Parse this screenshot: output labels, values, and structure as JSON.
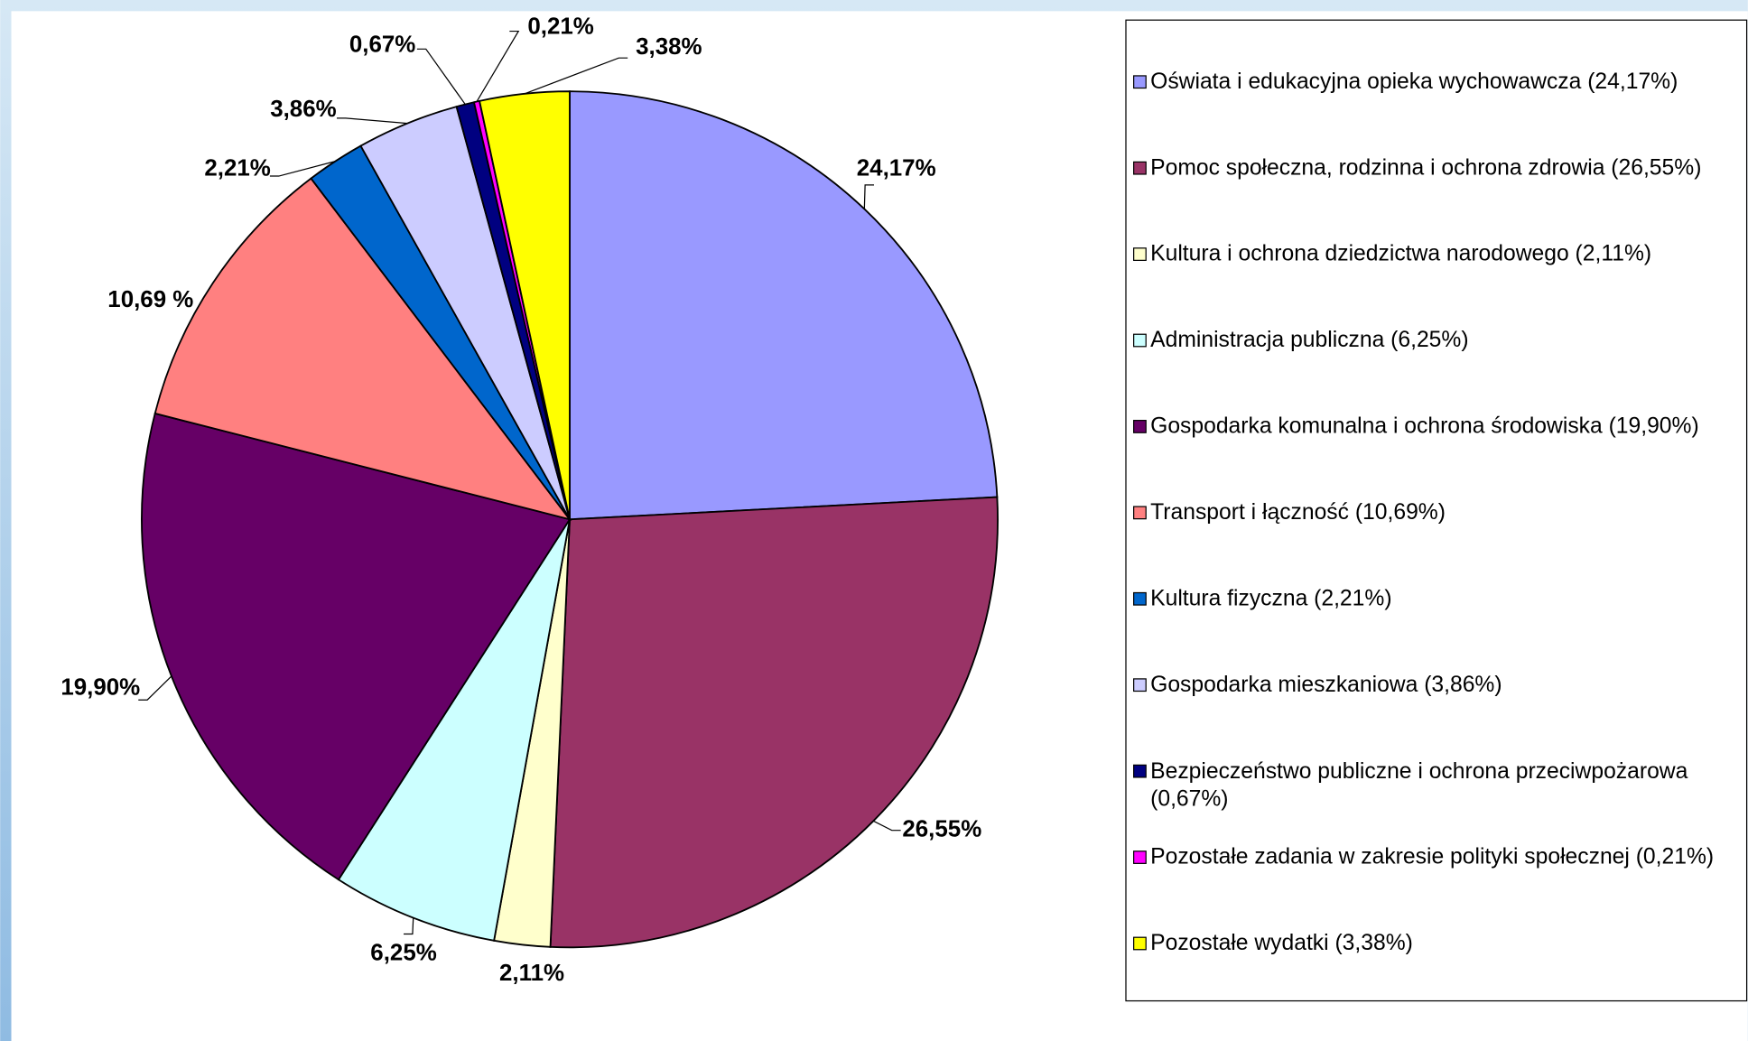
{
  "chart_data": {
    "type": "pie",
    "categories": [
      "Oświata i edukacyjna opieka wychowawcza (24,17%)",
      "Pomoc społeczna, rodzinna i ochrona zdrowia (26,55%)",
      "Kultura i ochrona dziedzictwa narodowego (2,11%)",
      "Administracja publiczna (6,25%)",
      "Gospodarka komunalna i ochrona środowiska (19,90%)",
      "Transport i łączność (10,69%)",
      "Kultura fizyczna (2,21%)",
      "Gospodarka mieszkaniowa (3,86%)",
      "Bezpieczeństwo publiczne i ochrona przeciwpożarowa (0,67%)",
      "Pozostałe zadania w zakresie polityki społecznej (0,21%)",
      "Pozostałe wydatki (3,38%)"
    ],
    "values": [
      24.17,
      26.55,
      2.11,
      6.25,
      19.9,
      10.69,
      2.21,
      3.86,
      0.67,
      0.21,
      3.38
    ],
    "value_labels": [
      "24,17%",
      "26,55%",
      "2,11%",
      "6,25%",
      "19,90%",
      "10,69 %",
      "2,21%",
      "3,86%",
      "0,67%",
      "0,21%",
      "3,38%"
    ],
    "colors": [
      "#9999ff",
      "#993366",
      "#ffffcc",
      "#ccffff",
      "#660066",
      "#ff8080",
      "#0066cc",
      "#ccccff",
      "#000080",
      "#ff00ff",
      "#ffff00"
    ],
    "legend": "right"
  }
}
